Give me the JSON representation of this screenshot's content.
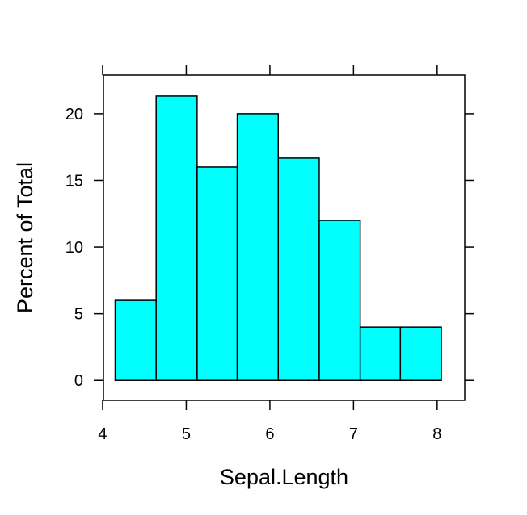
{
  "chart_data": {
    "type": "bar",
    "xlabel": "Sepal.Length",
    "ylabel": "Percent of Total",
    "bin_edges": [
      4.15,
      4.64,
      5.13,
      5.61,
      6.1,
      6.59,
      7.08,
      7.56,
      8.05
    ],
    "values": [
      6.0,
      21.33,
      16.0,
      20.0,
      16.67,
      12.0,
      4.0,
      4.0
    ],
    "xlim": [
      4.01,
      8.33
    ],
    "ylim": [
      -1.5,
      22.9
    ],
    "x_ticks": [
      4,
      5,
      6,
      7,
      8
    ],
    "x_tick_labels": [
      "4",
      "5",
      "6",
      "7",
      "8"
    ],
    "y_ticks": [
      0,
      5,
      10,
      15,
      20
    ],
    "y_tick_labels": [
      "0",
      "5",
      "10",
      "15",
      "20"
    ],
    "bar_color": "#00FFFF",
    "grid": false,
    "legend": "none"
  }
}
